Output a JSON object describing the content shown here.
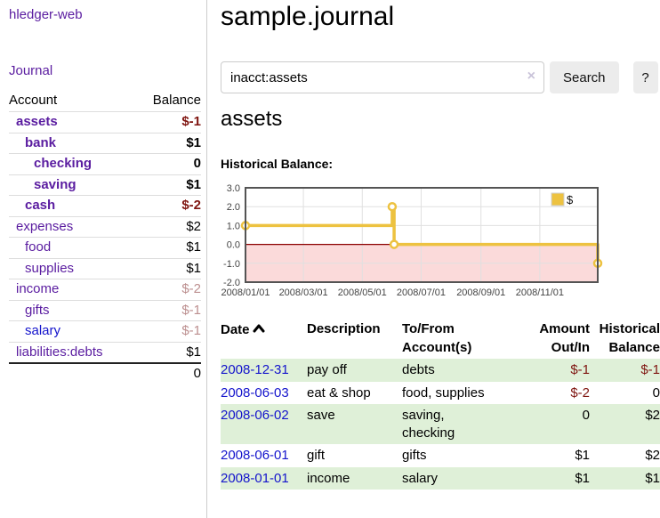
{
  "app": {
    "title": "hledger-web"
  },
  "sidebar": {
    "journal_label": "Journal",
    "accounts_header": {
      "account": "Account",
      "balance": "Balance"
    },
    "accounts": [
      {
        "name": "assets",
        "balance": "$-1",
        "indent": 0,
        "bold": true,
        "negative": "strong",
        "unvisited": false
      },
      {
        "name": "bank",
        "balance": "$1",
        "indent": 1,
        "bold": true,
        "negative": "none",
        "unvisited": false
      },
      {
        "name": "checking",
        "balance": "0",
        "indent": 2,
        "bold": true,
        "negative": "none",
        "unvisited": false
      },
      {
        "name": "saving",
        "balance": "$1",
        "indent": 2,
        "bold": true,
        "negative": "none",
        "unvisited": false
      },
      {
        "name": "cash",
        "balance": "$-2",
        "indent": 1,
        "bold": true,
        "negative": "strong",
        "unvisited": false
      },
      {
        "name": "expenses",
        "balance": "$2",
        "indent": 0,
        "bold": false,
        "negative": "none",
        "unvisited": false
      },
      {
        "name": "food",
        "balance": "$1",
        "indent": 1,
        "bold": false,
        "negative": "none",
        "unvisited": false
      },
      {
        "name": "supplies",
        "balance": "$1",
        "indent": 1,
        "bold": false,
        "negative": "none",
        "unvisited": false
      },
      {
        "name": "income",
        "balance": "$-2",
        "indent": 0,
        "bold": false,
        "negative": "soft",
        "unvisited": false
      },
      {
        "name": "gifts",
        "balance": "$-1",
        "indent": 1,
        "bold": false,
        "negative": "soft",
        "unvisited": false
      },
      {
        "name": "salary",
        "balance": "$-1",
        "indent": 1,
        "bold": false,
        "negative": "soft",
        "unvisited": true
      },
      {
        "name": "liabilities:debts",
        "balance": "$1",
        "indent": 0,
        "bold": false,
        "negative": "none",
        "unvisited": false
      }
    ],
    "total": "0"
  },
  "header": {
    "title": "sample.journal"
  },
  "search": {
    "value": "inacct:assets",
    "clear_icon": "×",
    "button_label": "Search",
    "help_label": "?"
  },
  "main": {
    "heading": "assets",
    "chart_label": "Historical Balance:"
  },
  "chart_data": {
    "type": "line",
    "step": true,
    "title": "Historical Balance:",
    "x_range": [
      "2008/01/01",
      "2008/12/31"
    ],
    "ylim": [
      -2,
      3
    ],
    "y_ticks": [
      "3.0",
      "2.0",
      "1.0",
      "0.0",
      "-1.0",
      "-2.0"
    ],
    "x_ticks": [
      "2008/01/01",
      "2008/03/01",
      "2008/05/01",
      "2008/07/01",
      "2008/09/01",
      "2008/11/01"
    ],
    "series": [
      {
        "name": "$",
        "color": "#edc240",
        "points": [
          [
            "2008/01/01",
            1
          ],
          [
            "2008/06/01",
            2
          ],
          [
            "2008/06/03",
            0
          ],
          [
            "2008/12/31",
            -1
          ]
        ]
      }
    ],
    "legend": {
      "label": "$",
      "position": "top-right"
    },
    "zero_line_color": "#8b0000",
    "negative_region_color": "#fbdada",
    "grid": true
  },
  "register": {
    "headers": {
      "date": "Date",
      "description": "Description",
      "tofrom_line1": "To/From",
      "tofrom_line2": "Account(s)",
      "amount_line1": "Amount",
      "amount_line2": "Out/In",
      "balance_line1": "Historical",
      "balance_line2": "Balance"
    },
    "rows": [
      {
        "date": "2008-12-31",
        "description": "pay off",
        "accounts": "debts",
        "amount": "$-1",
        "amount_negative": true,
        "balance": "$-1",
        "balance_negative": true
      },
      {
        "date": "2008-06-03",
        "description": "eat & shop",
        "accounts": "food, supplies",
        "amount": "$-2",
        "amount_negative": true,
        "balance": "0",
        "balance_negative": false
      },
      {
        "date": "2008-06-02",
        "description": "save",
        "accounts": "saving,\nchecking",
        "amount": "0",
        "amount_negative": false,
        "balance": "$2",
        "balance_negative": false
      },
      {
        "date": "2008-06-01",
        "description": "gift",
        "accounts": "gifts",
        "amount": "$1",
        "amount_negative": false,
        "balance": "$2",
        "balance_negative": false
      },
      {
        "date": "2008-01-01",
        "description": "income",
        "accounts": "salary",
        "amount": "$1",
        "amount_negative": false,
        "balance": "$1",
        "balance_negative": false
      }
    ]
  },
  "icons": {
    "sort": "chevron-up",
    "clear": "x-mark"
  },
  "colors": {
    "accent_purple": "#5a1ca0",
    "link_blue": "#1414cc",
    "negative_strong": "#7f1510",
    "negative_soft": "#bc8f8f",
    "row_green": "#dff0d8",
    "chart_gold": "#edc240",
    "chart_negative_fill": "#fbdada",
    "zero_line": "#8b0000"
  }
}
